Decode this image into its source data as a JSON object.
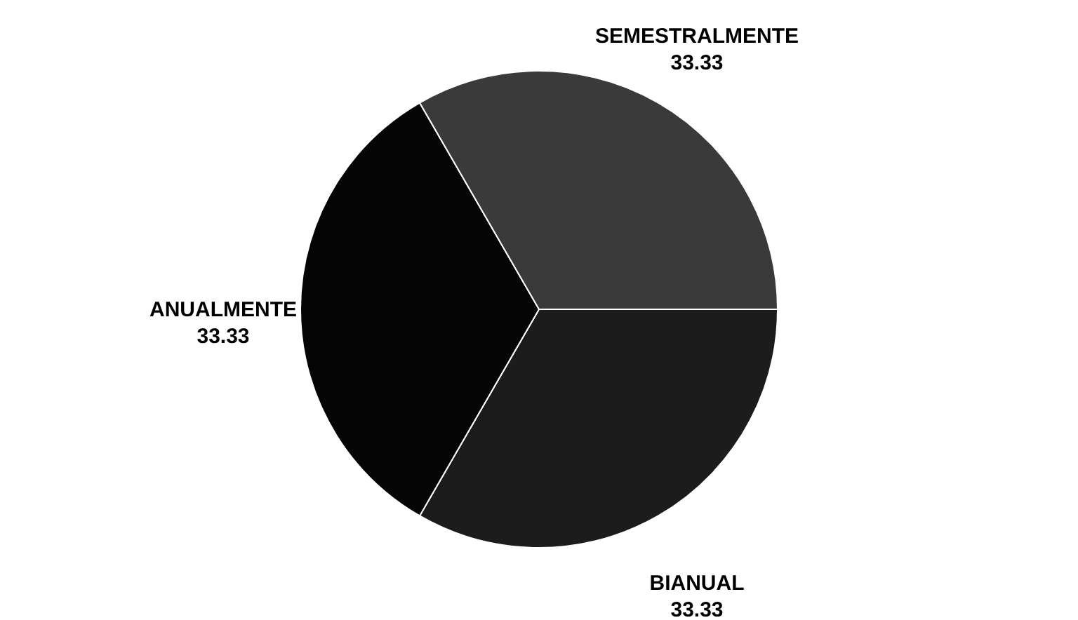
{
  "chart_data": {
    "type": "pie",
    "categories": [
      "BIANUAL",
      "ANUALMENTE",
      "SEMESTRALMENTE"
    ],
    "values": [
      33.33,
      33.33,
      33.33
    ],
    "colors": [
      "#1c1c1c",
      "#050505",
      "#3a3a3a"
    ],
    "data_labels": true
  }
}
